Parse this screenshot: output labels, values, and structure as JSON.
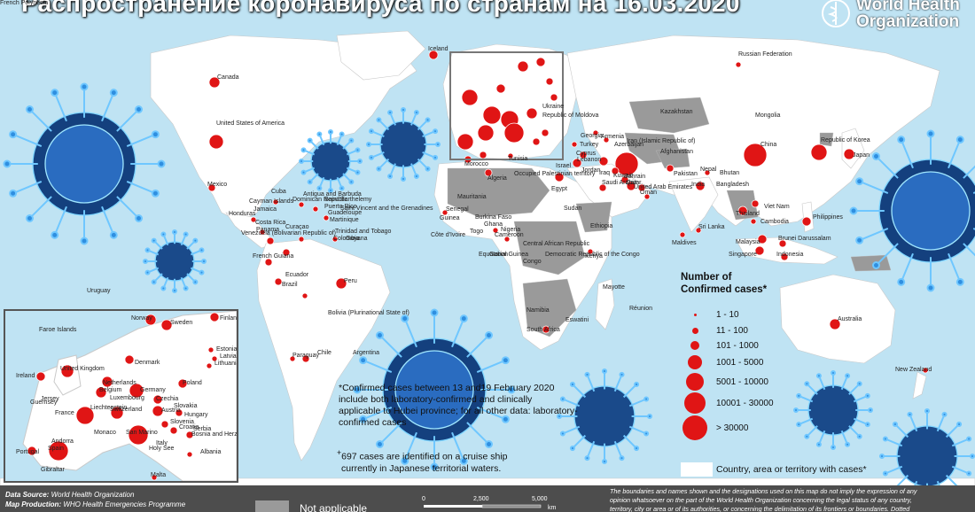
{
  "title": "Распространение коронавируса по странам на 16.03.2020",
  "who_logo": {
    "icon": "who-emblem-icon",
    "line1": "World Health",
    "line2": "Organization"
  },
  "colors": {
    "ocean": "#bfe3f3",
    "land": "#ffffff",
    "no_cases": "#9a9a9a",
    "dot": "#e01515",
    "virus": "#1a4fa8"
  },
  "country_labels": [
    "Iceland",
    "Canada",
    "United States of America",
    "Russian Federation",
    "Mongolia",
    "Kazakhstan",
    "Ukraine",
    "Republic of Moldova",
    "Georgia",
    "Armenia",
    "Azerbaijan",
    "Turkey",
    "Cyprus",
    "Lebanon",
    "Israel",
    "Occupied Palestinian territory",
    "Jordan",
    "Iran (Islamic Republic of)",
    "Iraq",
    "Kuwait",
    "Bahrain",
    "Qatar",
    "United Arab Emirates",
    "Oman",
    "Saudi Arabia",
    "Afghanistan",
    "Pakistan",
    "India",
    "Nepal",
    "Bhutan",
    "Bangladesh",
    "China",
    "Republic of Korea",
    "Japan",
    "Viet Nam",
    "Cambodia",
    "Thailand",
    "Philippines",
    "Sri Lanka",
    "Maldives",
    "Malaysia",
    "Brunei Darussalam",
    "Singapore",
    "Indonesia",
    "Australia",
    "New Zealand",
    "Morocco",
    "Tunisia",
    "Algeria",
    "Egypt",
    "Sudan",
    "Ethiopia",
    "Mauritania",
    "Senegal",
    "Guinea",
    "Côte d'Ivoire",
    "Burkina Faso",
    "Ghana",
    "Togo",
    "Nigeria",
    "Cameroon",
    "Central African Republic",
    "Gabon",
    "Equatorial Guinea",
    "Congo",
    "Democratic Republic of the Congo",
    "Kenya",
    "Namibia",
    "South Africa",
    "Eswatini",
    "Mayotte",
    "Réunion",
    "Mexico",
    "Cuba",
    "Cayman Islands",
    "Jamaica",
    "Honduras",
    "Costa Rica",
    "Panama",
    "Dominican Republic",
    "Antigua and Barbuda",
    "Saint Barthelemy",
    "Puerto Rico",
    "Guadeloupe",
    "Martinique",
    "Saint Vincent and the Grenadines",
    "Trinidad and Tobago",
    "Curaçao",
    "Venezuela (Bolivarian Republic of)",
    "Colombia",
    "Guyana",
    "French Guiana",
    "Ecuador",
    "Peru",
    "Brazil",
    "Bolivia (Plurinational State of)",
    "Paraguay",
    "Chile",
    "Argentina",
    "Uruguay",
    "French Polynesia"
  ],
  "inset_labels": [
    "Faroe Islands",
    "Norway",
    "Sweden",
    "Finland",
    "Estonia",
    "Latvia",
    "Lithuania",
    "Denmark",
    "United Kingdom",
    "Ireland",
    "Netherlands",
    "Belgium",
    "Luxembourg",
    "Germany",
    "Poland",
    "Czechia",
    "Slovakia",
    "Austria",
    "Hungary",
    "Switzerland",
    "Liechtenstein",
    "France",
    "Slovenia",
    "Croatia",
    "Serbia",
    "Bosnia and Herzegovina",
    "Monaco",
    "San Marino",
    "Italy",
    "Holy See",
    "Andorra",
    "Spain",
    "Portugal",
    "Albania",
    "Gibraltar",
    "Malta",
    "Guernsey",
    "Jersey"
  ],
  "legend": {
    "title_line1": "Number of",
    "title_line2": "Confirmed cases*",
    "items": [
      "1 - 10",
      "11 - 100",
      "101 - 1000",
      "1001 - 5000",
      "5001 - 10000",
      "10001 - 30000",
      "> 30000"
    ],
    "territory_label": "Country, area or territory with cases*"
  },
  "footnotes": {
    "note1_line1": "*Confirmed cases between 13 and19 February 2020",
    "note1_line2": "include both laboratory-confirmed and clinically",
    "note1_line3": "applicable to Hubei province; for all other data: laboratory-",
    "note1_line4": "confirmed cases",
    "note2_mark": "+",
    "note2_line1": "697 cases are identified on a cruise ship",
    "note2_line2": "currently in Japanese territorial waters."
  },
  "footer": {
    "source_label": "Data Source:",
    "source_value": "World Health Organization",
    "production_label": "Map Production:",
    "production_value": "WHO Health Emergencies Programme",
    "not_applicable": "Not applicable",
    "scale": [
      "0",
      "2,500",
      "5,000"
    ],
    "scale_unit": "km",
    "disclaimer_line1": "The boundaries and names shown and the designations used on this map do not imply the expression of any",
    "disclaimer_line2": "opinion whatsoever on the part of the World Health Organization concerning the legal status of any country,",
    "disclaimer_line3": "territory, city or area or of its authorities, or concerning the delimitation of its frontiers or boundaries. Dotted"
  }
}
